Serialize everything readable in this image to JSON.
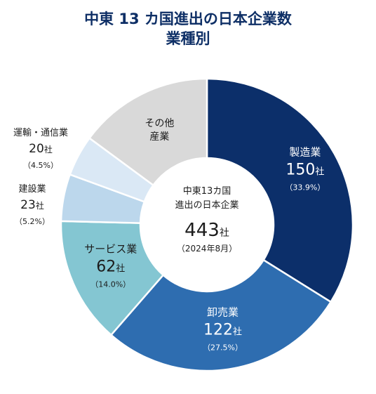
{
  "chart_data": {
    "type": "pie",
    "title": "中東 13 カ国進出の日本企業数",
    "subtitle": "業種別",
    "center": {
      "line1": "中東13カ国",
      "line2": "進出の日本企業",
      "total": "443",
      "unit": "社",
      "date": "（2024年8月）"
    },
    "slices": [
      {
        "label": "製造業",
        "value": 150,
        "value_text": "150",
        "unit": "社",
        "pct": "（33.9%）",
        "color": "#0c2f6a",
        "text_color": "#ffffff"
      },
      {
        "label": "卸売業",
        "value": 122,
        "value_text": "122",
        "unit": "社",
        "pct": "（27.5%）",
        "color": "#2e6db0",
        "text_color": "#ffffff"
      },
      {
        "label": "サービス業",
        "value": 62,
        "value_text": "62",
        "unit": "社",
        "pct": "（14.0%）",
        "color": "#84c6d2",
        "text_color": "#1c1c1c"
      },
      {
        "label": "建設業",
        "value": 23,
        "value_text": "23",
        "unit": "社",
        "pct": "（5.2%）",
        "color": "#bcd7ec",
        "text_color": "#1c1c1c"
      },
      {
        "label": "運輸・通信業",
        "value": 20,
        "value_text": "20",
        "unit": "社",
        "pct": "（4.5%）",
        "color": "#dae8f5",
        "text_color": "#1c1c1c"
      },
      {
        "label": "その他産業",
        "label_lines": [
          "その他",
          "産業"
        ],
        "value": 66,
        "color": "#d9d9d9",
        "text_color": "#1c1c1c"
      }
    ]
  }
}
